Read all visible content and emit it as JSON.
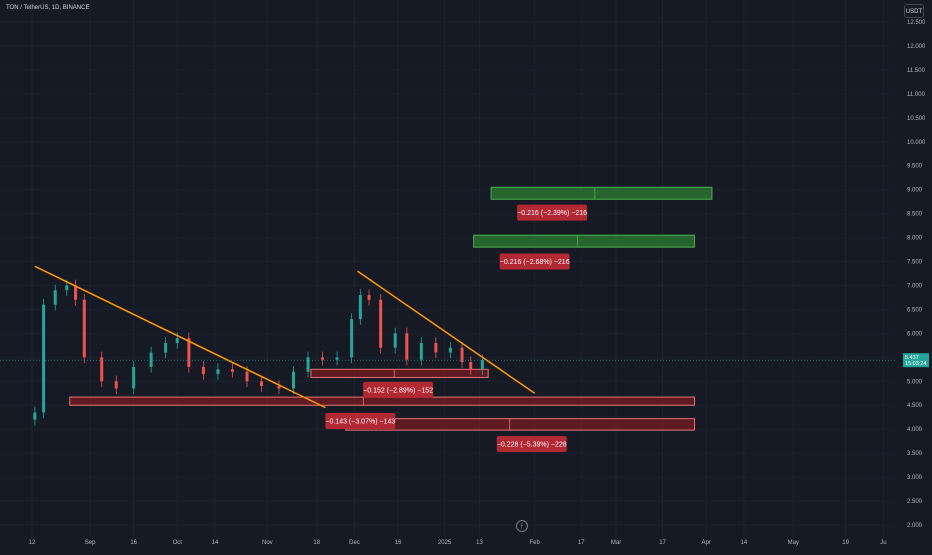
{
  "symbol_label": "TON / TetherUS, 1D, BINANCE",
  "currency_button": "USDT",
  "watermark_glyph": "ϝ",
  "colors": {
    "background": "#161a25",
    "up_candle": "#26a69a",
    "down_candle": "#ef5350",
    "trendline": "#ff9800",
    "green_box": "#2e7d32",
    "red_box": "#b71c1c",
    "label_bg": "#b22833"
  },
  "chart_data": {
    "type": "candlestick",
    "title": "TON / TetherUS, 1D, BINANCE",
    "y_unit": "USDT",
    "ylim": [
      2.0,
      12.8
    ],
    "y_ticks": [
      "12.500",
      "12.000",
      "11.500",
      "11.000",
      "10.500",
      "10.000",
      "9.500",
      "9.000",
      "8.500",
      "8.000",
      "7.500",
      "7.000",
      "6.500",
      "6.000",
      "5.500",
      "5.000",
      "4.500",
      "4.000",
      "3.500",
      "3.000",
      "2.500",
      "2.000"
    ],
    "x_ticks": [
      "12",
      "Sep",
      "16",
      "Oct",
      "14",
      "Nov",
      "18",
      "Dec",
      "16",
      "2025",
      "13",
      "Feb",
      "17",
      "Mar",
      "17",
      "Apr",
      "14",
      "May",
      "19",
      "Ju"
    ],
    "x_tick_dates": [
      "2024-08-12",
      "2024-09-01",
      "2024-09-16",
      "2024-10-01",
      "2024-10-14",
      "2024-11-01",
      "2024-11-18",
      "2024-12-01",
      "2024-12-16",
      "2025-01-01",
      "2025-01-13",
      "2025-02-01",
      "2025-02-17",
      "2025-03-01",
      "2025-03-17",
      "2025-04-01",
      "2025-04-14",
      "2025-05-01",
      "2025-05-19",
      "2025-06-01"
    ],
    "x_range": [
      "2024-08-01",
      "2025-06-05"
    ],
    "last_price_labels": [
      "5.437",
      "15:03:24"
    ],
    "candles_approx": [
      {
        "date": "2024-08-13",
        "close": 4.35
      },
      {
        "date": "2024-08-16",
        "close": 6.6
      },
      {
        "date": "2024-08-20",
        "close": 6.9
      },
      {
        "date": "2024-08-24",
        "close": 7.0
      },
      {
        "date": "2024-08-27",
        "close": 6.7
      },
      {
        "date": "2024-08-30",
        "close": 5.5
      },
      {
        "date": "2024-09-05",
        "close": 5.0
      },
      {
        "date": "2024-09-10",
        "close": 4.85
      },
      {
        "date": "2024-09-16",
        "close": 5.3
      },
      {
        "date": "2024-09-22",
        "close": 5.6
      },
      {
        "date": "2024-09-27",
        "close": 5.8
      },
      {
        "date": "2024-10-01",
        "close": 5.9
      },
      {
        "date": "2024-10-05",
        "close": 5.3
      },
      {
        "date": "2024-10-10",
        "close": 5.15
      },
      {
        "date": "2024-10-15",
        "close": 5.25
      },
      {
        "date": "2024-10-20",
        "close": 5.2
      },
      {
        "date": "2024-10-25",
        "close": 5.0
      },
      {
        "date": "2024-10-30",
        "close": 4.9
      },
      {
        "date": "2024-11-05",
        "close": 4.85
      },
      {
        "date": "2024-11-10",
        "close": 5.2
      },
      {
        "date": "2024-11-15",
        "close": 5.5
      },
      {
        "date": "2024-11-20",
        "close": 5.45
      },
      {
        "date": "2024-11-25",
        "close": 5.5
      },
      {
        "date": "2024-11-30",
        "close": 6.3
      },
      {
        "date": "2024-12-03",
        "close": 6.8
      },
      {
        "date": "2024-12-06",
        "close": 6.7
      },
      {
        "date": "2024-12-10",
        "close": 5.7
      },
      {
        "date": "2024-12-15",
        "close": 6.0
      },
      {
        "date": "2024-12-19",
        "close": 5.45
      },
      {
        "date": "2024-12-24",
        "close": 5.8
      },
      {
        "date": "2024-12-29",
        "close": 5.6
      },
      {
        "date": "2025-01-03",
        "close": 5.7
      },
      {
        "date": "2025-01-07",
        "close": 5.4
      },
      {
        "date": "2025-01-10",
        "close": 5.25
      },
      {
        "date": "2025-01-14",
        "close": 5.44
      }
    ],
    "trendlines": [
      {
        "from": {
          "date": "2024-08-13",
          "price": 7.4
        },
        "to": {
          "date": "2024-11-21",
          "price": 4.45
        }
      },
      {
        "from": {
          "date": "2024-12-02",
          "price": 7.3
        },
        "to": {
          "date": "2025-02-01",
          "price": 4.75
        }
      }
    ],
    "zones": [
      {
        "color": "green",
        "start": "2025-01-17",
        "end": "2025-04-03",
        "top": 9.05,
        "bottom": 8.8
      },
      {
        "color": "green",
        "start": "2025-01-11",
        "end": "2025-03-28",
        "top": 8.05,
        "bottom": 7.8
      },
      {
        "color": "red",
        "start": "2024-11-16",
        "end": "2025-01-16",
        "top": 5.25,
        "bottom": 5.08
      },
      {
        "color": "red",
        "start": "2024-08-25",
        "end": "2025-03-28",
        "top": 4.67,
        "bottom": 4.5
      },
      {
        "color": "red",
        "start": "2024-11-28",
        "end": "2025-03-28",
        "top": 4.22,
        "bottom": 3.98
      }
    ],
    "measure_labels": [
      {
        "text": "−0.216 (−2.39%) −216",
        "date": "2025-02-07",
        "price": 8.52
      },
      {
        "text": "−0.216 (−2.68%) −216",
        "date": "2025-02-01",
        "price": 7.5
      },
      {
        "text": "−0.152 (−2.89%) −152",
        "date": "2024-12-16",
        "price": 4.82
      },
      {
        "text": "−0.143 (−3.07%) −143",
        "date": "2024-12-03",
        "price": 4.17
      },
      {
        "text": "−0.228 (−5.39%) −228",
        "date": "2025-01-31",
        "price": 3.69
      }
    ]
  }
}
